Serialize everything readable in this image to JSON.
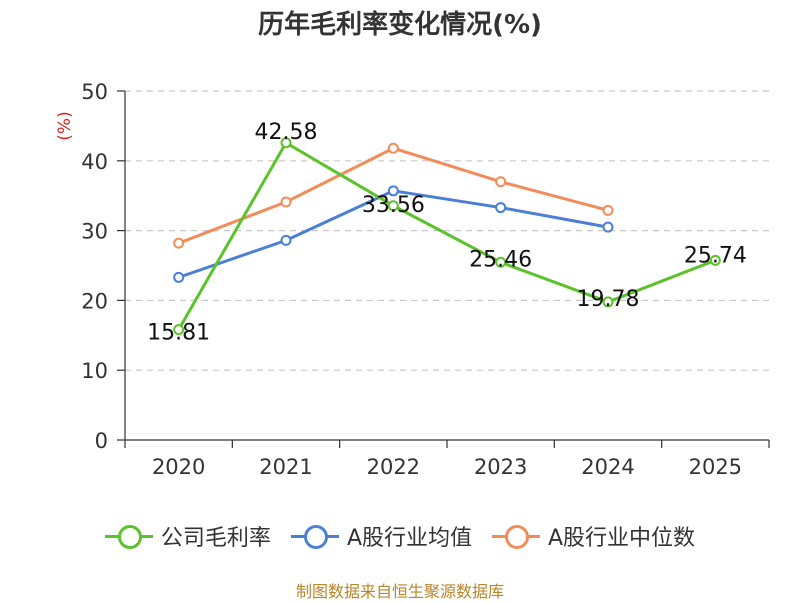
{
  "chart_data": {
    "type": "line",
    "title": "历年毛利率变化情况(%)",
    "ylabel": "(%)",
    "ylim": [
      0,
      50
    ],
    "yticks": [
      0,
      10,
      20,
      30,
      40,
      50
    ],
    "categories": [
      "2020",
      "2021",
      "2022",
      "2023",
      "2024",
      "2025"
    ],
    "grid": true,
    "legend_position": "bottom",
    "series": [
      {
        "name": "公司毛利率",
        "color": "#5cc22a",
        "values": [
          15.81,
          42.58,
          33.56,
          25.46,
          19.78,
          25.74
        ],
        "labels": [
          "15.81",
          "42.58",
          "33.56",
          "25.46",
          "19.78",
          "25.74"
        ]
      },
      {
        "name": "A股行业均值",
        "color": "#4a7fd4",
        "values": [
          23.3,
          28.6,
          35.7,
          33.3,
          30.5,
          null
        ]
      },
      {
        "name": "A股行业中位数",
        "color": "#f28c5a",
        "values": [
          28.2,
          34.1,
          41.8,
          37.0,
          32.9,
          null
        ]
      }
    ]
  },
  "footer": {
    "source": "制图数据来自恒生聚源数据库"
  }
}
